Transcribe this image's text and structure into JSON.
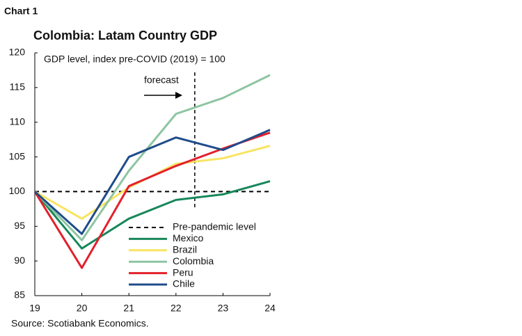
{
  "chart_data": {
    "type": "line",
    "label": "Chart 1",
    "title": "Colombia: Latam Country GDP",
    "subtitle": "GDP level, index pre-COVID (2019) = 100",
    "source": "Source: Scotiabank Economics.",
    "x": [
      19,
      20,
      21,
      22,
      23,
      24
    ],
    "xlim": [
      19,
      24
    ],
    "xticks": [
      19,
      20,
      21,
      22,
      23,
      24
    ],
    "ylim": [
      85,
      120
    ],
    "yticks": [
      85,
      90,
      95,
      100,
      105,
      110,
      115,
      120
    ],
    "reference_line": {
      "name": "Pre-pandemic level",
      "value": 100,
      "color": "#000000"
    },
    "forecast": {
      "label": "forecast",
      "x": 22.4
    },
    "series": [
      {
        "name": "Mexico",
        "color": "#17875a",
        "values": [
          100,
          91.8,
          96.1,
          98.8,
          99.6,
          101.5
        ]
      },
      {
        "name": "Brazil",
        "color": "#f8e461",
        "values": [
          100,
          96.1,
          100.6,
          104.0,
          104.8,
          106.6
        ]
      },
      {
        "name": "Colombia",
        "color": "#8dc5a1",
        "values": [
          100,
          93.0,
          103.0,
          111.2,
          113.5,
          116.8
        ]
      },
      {
        "name": "Peru",
        "color": "#e3202b",
        "values": [
          100,
          89.0,
          100.8,
          103.7,
          106.2,
          108.5
        ]
      },
      {
        "name": "Chile",
        "color": "#1f4c8a",
        "values": [
          100,
          93.9,
          105.0,
          107.8,
          106.0,
          108.9
        ]
      }
    ]
  }
}
